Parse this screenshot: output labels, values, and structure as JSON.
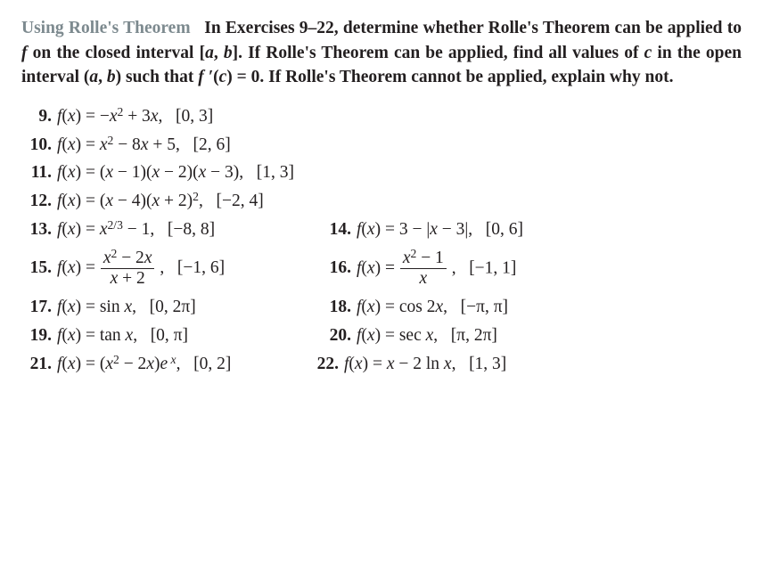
{
  "intro": {
    "topic": "Using  Rolle's Theorem",
    "rest_html": "In Exercises 9–22, determine whether Rolle's Theorem can be applied to <span class='fi'>f</span> on the closed interval [<span class='fi'>a</span>, <span class='fi'>b</span>]. If Rolle's Theorem can be applied, find all values of <span class='fi'>c</span> in the open interval (<span class='fi'>a</span>, <span class='fi'>b</span>) such that <span class='fi'>f &prime;</span>(<span class='fi'>c</span>) = 0. If Rolle's Theorem cannot be applied, explain why not."
  },
  "ex": {
    "n9": "9.",
    "f9": "<span class='fi'>f</span>(<span class='fi'>x</span>) = &minus;<span class='fi'>x</span><sup>2</sup> + 3<span class='fi'>x</span>,&nbsp;&nbsp;&nbsp;[0, 3]",
    "n10": "10.",
    "f10": "<span class='fi'>f</span>(<span class='fi'>x</span>) = <span class='fi'>x</span><sup>2</sup> &minus; 8<span class='fi'>x</span> + 5,&nbsp;&nbsp;&nbsp;[2, 6]",
    "n11": "11.",
    "f11": "<span class='fi'>f</span>(<span class='fi'>x</span>) = (<span class='fi'>x</span> &minus; 1)(<span class='fi'>x</span> &minus; 2)(<span class='fi'>x</span> &minus; 3),&nbsp;&nbsp;&nbsp;[1, 3]",
    "n12": "12.",
    "f12": "<span class='fi'>f</span>(<span class='fi'>x</span>) = (<span class='fi'>x</span> &minus; 4)(<span class='fi'>x</span> + 2)<sup>2</sup>,&nbsp;&nbsp;&nbsp;[&minus;2, 4]",
    "n13": "13.",
    "f13": "<span class='fi'>f</span>(<span class='fi'>x</span>) = <span class='fi'>x</span><sup>2/3</sup> &minus; 1,&nbsp;&nbsp;&nbsp;[&minus;8, 8]",
    "n14": "14.",
    "f14": "<span class='fi'>f</span>(<span class='fi'>x</span>) = 3 &minus; |<span class='fi'>x</span> &minus; 3|,&nbsp;&nbsp;&nbsp;[0, 6]",
    "n15": "15.",
    "f15": "<span class='fi'>f</span>(<span class='fi'>x</span>) = <span class='frac'><span class='fnum'><span class='fi'>x</span><sup>2</sup> &minus; 2<span class='fi'>x</span></span><span class='fden'><span class='fi'>x</span> + 2</span></span> ,&nbsp;&nbsp;&nbsp;[&minus;1, 6]",
    "n16": "16.",
    "f16": "<span class='fi'>f</span>(<span class='fi'>x</span>) = <span class='frac'><span class='fnum'><span class='fi'>x</span><sup>2</sup> &minus; 1</span><span class='fden'><span class='fi'>x</span></span></span> ,&nbsp;&nbsp;&nbsp;[&minus;1, 1]",
    "n17": "17.",
    "f17": "<span class='fi'>f</span>(<span class='fi'>x</span>) = sin <span class='fi'>x</span>,&nbsp;&nbsp;&nbsp;[0, 2&pi;]",
    "n18": "18.",
    "f18": "<span class='fi'>f</span>(<span class='fi'>x</span>) = cos 2<span class='fi'>x</span>,&nbsp;&nbsp;&nbsp;[&minus;&pi;, &pi;]",
    "n19": "19.",
    "f19": "<span class='fi'>f</span>(<span class='fi'>x</span>) = tan <span class='fi'>x</span>,&nbsp;&nbsp;&nbsp;[0, &pi;]",
    "n20": "20.",
    "f20": "<span class='fi'>f</span>(<span class='fi'>x</span>) = sec <span class='fi'>x</span>,&nbsp;&nbsp;&nbsp;[&pi;, 2&pi;]",
    "n21": "21.",
    "f21": "<span class='fi'>f</span>(<span class='fi'>x</span>) = (<span class='fi'>x</span><sup>2</sup> &minus; 2<span class='fi'>x</span>)<span class='fi'>e</span><sup>&nbsp;<span class='fi'>x</span></sup>,&nbsp;&nbsp;&nbsp;[0, 2]",
    "n22": "22.",
    "f22": "<span class='fi'>f</span>(<span class='fi'>x</span>) = <span class='fi'>x</span> &minus; 2 ln <span class='fi'>x</span>,&nbsp;&nbsp;&nbsp;[1, 3]"
  },
  "style": {
    "topic_color": "#7d8a8f",
    "text_color": "#231f20",
    "body_fontsize": 19.5,
    "intro_fontweight": "bold",
    "font_family": "Times New Roman"
  }
}
